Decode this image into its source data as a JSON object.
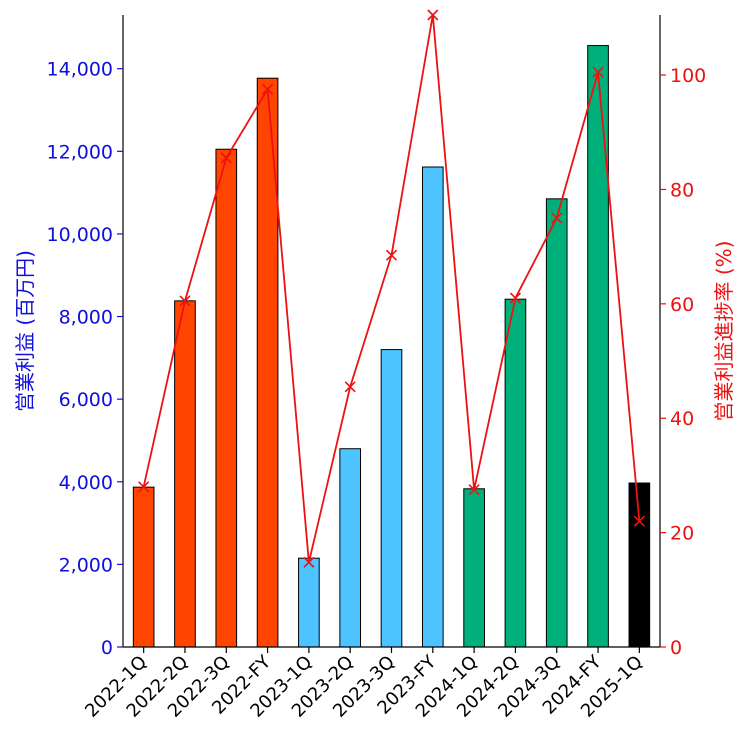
{
  "chart_data": {
    "type": "bar",
    "categories": [
      "2022-1Q",
      "2022-2Q",
      "2022-3Q",
      "2022-FY",
      "2023-1Q",
      "2023-2Q",
      "2023-3Q",
      "2023-FY",
      "2024-1Q",
      "2024-2Q",
      "2024-3Q",
      "2024-FY",
      "2025-1Q"
    ],
    "bar_series": {
      "values": [
        3870,
        8380,
        12050,
        13770,
        2150,
        4800,
        7200,
        11620,
        3830,
        8420,
        10850,
        14560,
        3970
      ],
      "colors": [
        "#ff4500",
        "#ff4500",
        "#ff4500",
        "#ff4500",
        "#4dc3ff",
        "#4dc3ff",
        "#4dc3ff",
        "#4dc3ff",
        "#00b07a",
        "#00b07a",
        "#00b07a",
        "#00b07a",
        "#000000"
      ]
    },
    "line_series": {
      "values": [
        28,
        60.5,
        85.5,
        97.5,
        14.8,
        45.5,
        68.5,
        110.5,
        27.5,
        61,
        75,
        100.5,
        22
      ],
      "color": "#ee1111",
      "marker": "x"
    },
    "ylabel_left": "営業利益 (百万円)",
    "ylabel_right": "営業利益進捗率 (%)",
    "ylim_left": [
      0,
      15300
    ],
    "ylim_right": [
      0,
      110.5
    ],
    "yticks_left": [
      0,
      2000,
      4000,
      6000,
      8000,
      10000,
      12000,
      14000
    ],
    "yticks_left_labels": [
      "0",
      "2,000",
      "4,000",
      "6,000",
      "8,000",
      "10,000",
      "12,000",
      "14,000"
    ],
    "yticks_right": [
      0,
      20,
      40,
      60,
      80,
      100
    ],
    "yticks_right_labels": [
      "0",
      "20",
      "40",
      "60",
      "80",
      "100"
    ],
    "left_axis_color": "#1010dd",
    "right_axis_color": "#ee1111",
    "grid": false,
    "legend": "none"
  }
}
